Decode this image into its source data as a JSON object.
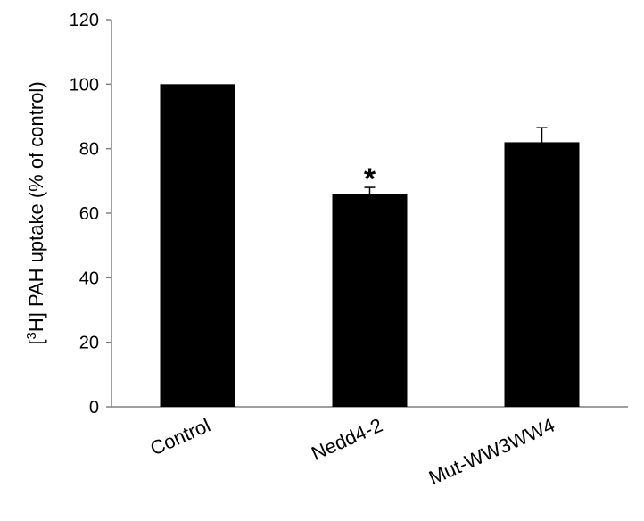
{
  "chart_data": {
    "type": "bar",
    "title": "",
    "xlabel": "",
    "ylabel": {
      "prefix": "[",
      "superscript": "3",
      "suffix": "H] PAH uptake (% of control)"
    },
    "categories": [
      "Control",
      "Nedd4-2",
      "Mut-WW3WW4"
    ],
    "values": [
      100,
      66,
      82
    ],
    "errors": [
      0,
      2,
      4.5
    ],
    "annotations": [
      "",
      "*",
      ""
    ],
    "ylim": [
      0,
      120
    ],
    "yticks": [
      0,
      20,
      40,
      60,
      80,
      100,
      120
    ],
    "grid": false,
    "bar_color": "#000000"
  }
}
